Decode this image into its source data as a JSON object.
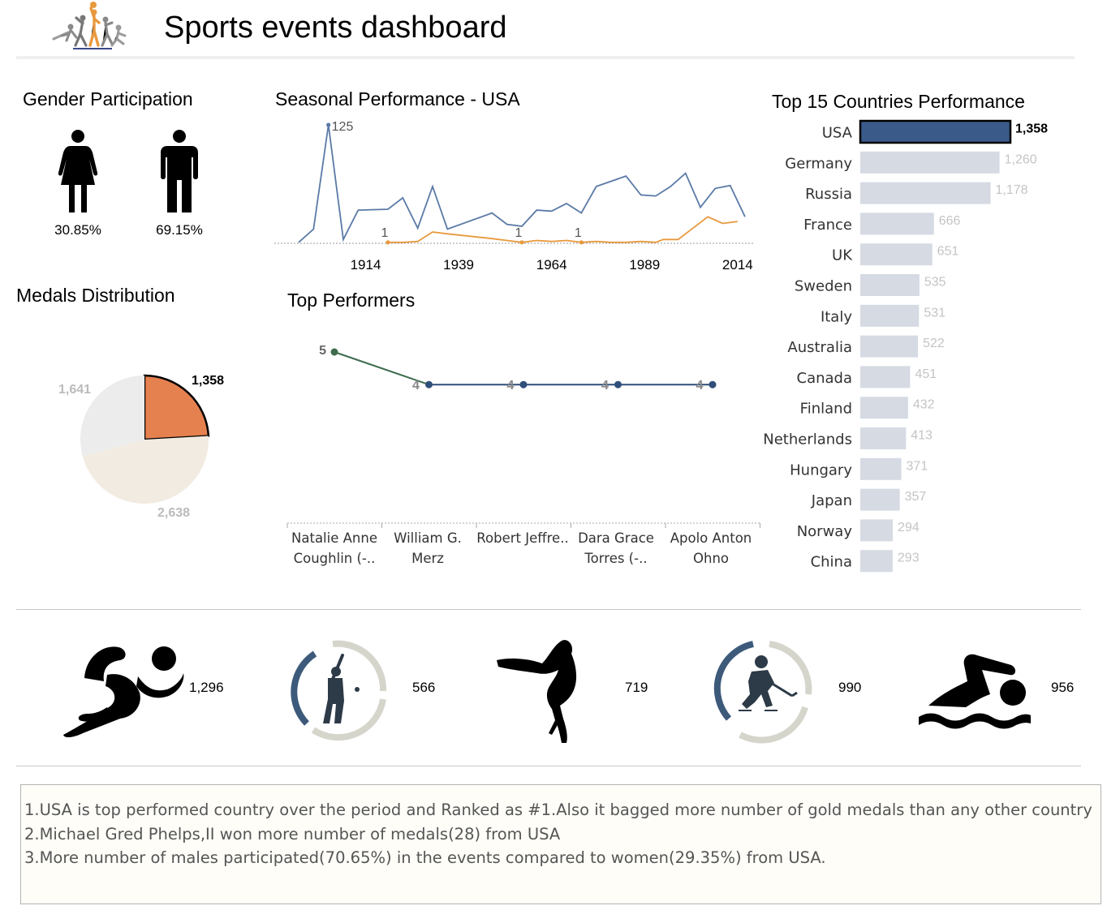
{
  "header": {
    "title": "Sports events dashboard",
    "logo_icon": "sports-logo-icon"
  },
  "gender": {
    "title": "Gender Participation",
    "female_icon": "female-icon",
    "male_icon": "male-icon",
    "female_pct": "30.85%",
    "male_pct": "69.15%"
  },
  "seasonal": {
    "title": "Seasonal Performance  - USA",
    "peak_label": "125",
    "annotations": [
      "1",
      "1",
      "1"
    ],
    "colors": {
      "series_a": "#5a7aa6",
      "series_b": "#e8993d"
    }
  },
  "medals": {
    "title": "Medals Distribution",
    "colors": {
      "highlight": "#e5814f",
      "light": "#f2ebe1",
      "grey": "#ececec"
    }
  },
  "performers": {
    "title": "Top Performers",
    "colors": {
      "first": "#3d6b4e",
      "rest": "#2f4e7a"
    }
  },
  "countries": {
    "title": "Top 15 Countries Performance",
    "colors": {
      "selected": "#3a5a8a",
      "other": "#d5dae3"
    }
  },
  "sports": [
    {
      "icon": "running-icon",
      "value": "1,296"
    },
    {
      "icon": "baseball-icon",
      "value": "566"
    },
    {
      "icon": "gymnastics-icon",
      "value": "719"
    },
    {
      "icon": "hockey-icon",
      "value": "990"
    },
    {
      "icon": "swimming-icon",
      "value": "956"
    }
  ],
  "insights": [
    "1.USA is top performed country over the period and Ranked as #1.Also it bagged more number of gold medals than any other country",
    "2.Michael Gred Phelps,II won more number of medals(28) from USA",
    "3.More number of males participated(70.65%) in the events compared to women(29.35%) from USA."
  ],
  "chart_data": [
    {
      "type": "line",
      "title": "Seasonal Performance  - USA",
      "x_ticks": [
        "1914",
        "1939",
        "1964",
        "1989",
        "2014"
      ],
      "xlim": [
        1896,
        2016
      ],
      "ylim": [
        0,
        125
      ],
      "series": [
        {
          "x": [
            1896,
            1900,
            1904,
            1908,
            1912,
            1920,
            1924,
            1928,
            1932,
            1936,
            1948,
            1952,
            1956,
            1960,
            1964,
            1968,
            1972,
            1976,
            1984,
            1988,
            1992,
            1996,
            2000,
            2004,
            2008,
            2012,
            2016
          ],
          "values": [
            1,
            15,
            125,
            4,
            35,
            36,
            48,
            16,
            60,
            15,
            32,
            20,
            18,
            35,
            34,
            42,
            32,
            60,
            71,
            51,
            50,
            60,
            74,
            38,
            58,
            61,
            28
          ]
        },
        {
          "x": [
            1920,
            1924,
            1928,
            1932,
            1936,
            1948,
            1952,
            1956,
            1960,
            1964,
            1968,
            1972,
            1976,
            1980,
            1984,
            1988,
            1992,
            1994,
            1998,
            2002,
            2006,
            2010,
            2014
          ],
          "values": [
            1,
            1,
            2,
            12,
            10,
            5,
            3,
            1,
            3,
            2,
            3,
            1,
            2,
            1,
            1,
            2,
            1,
            4,
            4,
            16,
            28,
            21,
            23
          ]
        }
      ],
      "point_labels": [
        {
          "series": 0,
          "x": 1904,
          "label": "125"
        },
        {
          "series": 1,
          "x": 1920,
          "label": "1"
        },
        {
          "series": 1,
          "x": 1956,
          "label": "1"
        },
        {
          "series": 1,
          "x": 1972,
          "label": "1"
        }
      ]
    },
    {
      "type": "pie",
      "slices": [
        {
          "label": "1,358",
          "value": 1358,
          "highlight": true
        },
        {
          "label": "2,638",
          "value": 2638
        },
        {
          "label": "1,641",
          "value": 1641
        }
      ]
    },
    {
      "type": "line",
      "title": "Top Performers",
      "categories": [
        "Natalie Anne Coughlin (-..",
        "William G. Merz",
        "Robert Jeffre..",
        "Dara Grace Torres (-..",
        "Apolo Anton Ohno"
      ],
      "values": [
        5,
        4,
        4,
        4,
        4
      ],
      "ylim": [
        0,
        5
      ]
    },
    {
      "type": "bar",
      "orientation": "horizontal",
      "title": "Top 15 Countries Performance",
      "categories": [
        "USA",
        "Germany",
        "Russia",
        "France",
        "UK",
        "Sweden",
        "Italy",
        "Australia",
        "Canada",
        "Finland",
        "Netherlands",
        "Hungary",
        "Japan",
        "Norway",
        "China"
      ],
      "values": [
        1358,
        1260,
        1178,
        666,
        651,
        535,
        531,
        522,
        451,
        432,
        413,
        371,
        357,
        294,
        293
      ],
      "labels": [
        "1,358",
        "1,260",
        "1,178",
        "666",
        "651",
        "535",
        "531",
        "522",
        "451",
        "432",
        "413",
        "371",
        "357",
        "294",
        "293"
      ],
      "selected": "USA",
      "xlim": [
        0,
        1358
      ]
    }
  ]
}
